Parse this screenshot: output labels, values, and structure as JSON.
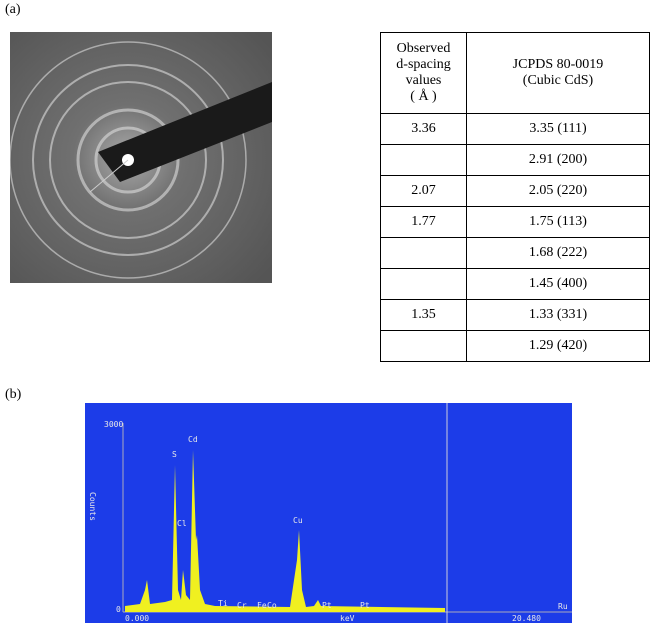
{
  "panel_a": {
    "label": "(a)",
    "table": {
      "header": [
        [
          "Observed",
          "d-spacing",
          "values",
          "( Å )"
        ],
        [
          "JCPDS 80-0019",
          "(Cubic CdS)"
        ]
      ],
      "rows": [
        [
          "3.36",
          "3.35 (111)"
        ],
        [
          null,
          "2.91 (200)"
        ],
        [
          "2.07",
          "2.05 (220)"
        ],
        [
          "1.77",
          "1.75 (113)"
        ],
        [
          null,
          "1.68 (222)"
        ],
        [
          null,
          "1.45 (400)"
        ],
        [
          "1.35",
          "1.33 (331)"
        ],
        [
          null,
          "1.29 (420)"
        ]
      ]
    }
  },
  "panel_b": {
    "label": "(b)",
    "y_max_label": "3000",
    "y_min_label": "0",
    "y_axis_label": "Counts",
    "x_min_label": "0.000",
    "x_unit": "keV",
    "x_max_label": "20.480",
    "corner_label": "Ru",
    "elements": [
      "S",
      "Cd",
      "Cl",
      "Cu",
      "Ti",
      "Cr",
      "Fe",
      "Co",
      "Pt",
      "Pt"
    ]
  }
}
